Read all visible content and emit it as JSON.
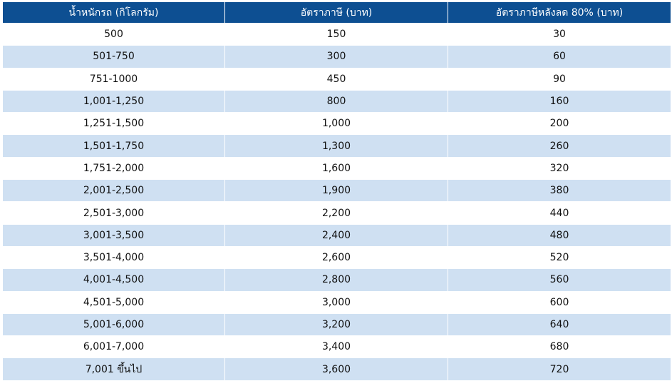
{
  "headers": [
    "น้ำหนักรถ (กิโลกรัม)",
    "อัตราภาษี (บาท)",
    "อัตราภาษีหลังลด 80% (บาท)"
  ],
  "rows": [
    [
      "500",
      "150",
      "30"
    ],
    [
      "501-750",
      "300",
      "60"
    ],
    [
      "751-1000",
      "450",
      "90"
    ],
    [
      "1,001-1,250",
      "800",
      "160"
    ],
    [
      "1,251-1,500",
      "1,000",
      "200"
    ],
    [
      "1,501-1,750",
      "1,300",
      "260"
    ],
    [
      "1,751-2,000",
      "1,600",
      "320"
    ],
    [
      "2,001-2,500",
      "1,900",
      "380"
    ],
    [
      "2,501-3,000",
      "2,200",
      "440"
    ],
    [
      "3,001-3,500",
      "2,400",
      "480"
    ],
    [
      "3,501-4,000",
      "2,600",
      "520"
    ],
    [
      "4,001-4,500",
      "2,800",
      "560"
    ],
    [
      "4,501-5,000",
      "3,000",
      "600"
    ],
    [
      "5,001-6,000",
      "3,200",
      "640"
    ],
    [
      "6,001-7,000",
      "3,400",
      "680"
    ],
    [
      "7,001 ขึ้นไป",
      "3,600",
      "720"
    ]
  ],
  "colors": {
    "header_bg": "#0d4f92",
    "stripe_bg": "#cfe0f2"
  }
}
